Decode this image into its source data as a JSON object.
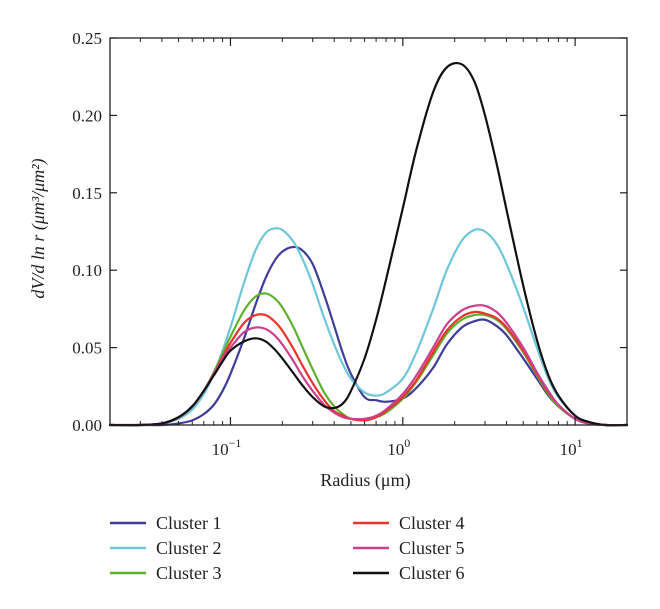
{
  "chart_data": {
    "type": "line",
    "title": "",
    "xlabel": "Radius (μm)",
    "ylabel": "dV/d ln r (μm³/μm²)",
    "xscale": "log",
    "xlim": [
      0.02,
      20
    ],
    "ylim": [
      0,
      0.25
    ],
    "xticks": [
      {
        "value": 0.1,
        "base": "10",
        "exp": "−1"
      },
      {
        "value": 1,
        "base": "10",
        "exp": "0"
      },
      {
        "value": 10,
        "base": "10",
        "exp": "1"
      }
    ],
    "yticks": [
      {
        "value": 0,
        "label": "0.00"
      },
      {
        "value": 0.05,
        "label": "0.05"
      },
      {
        "value": 0.1,
        "label": "0.10"
      },
      {
        "value": 0.15,
        "label": "0.15"
      },
      {
        "value": 0.2,
        "label": "0.20"
      },
      {
        "value": 0.25,
        "label": "0.25"
      }
    ],
    "grid": false,
    "legend_position": "bottom",
    "x": [
      0.02,
      0.03,
      0.04,
      0.05,
      0.06,
      0.07,
      0.08,
      0.09,
      0.1,
      0.12,
      0.14,
      0.16,
      0.18,
      0.2,
      0.23,
      0.26,
      0.3,
      0.35,
      0.4,
      0.45,
      0.5,
      0.6,
      0.7,
      0.8,
      1.0,
      1.2,
      1.5,
      1.8,
      2.2,
      2.6,
      3.0,
      3.5,
      4.0,
      5.0,
      6.0,
      7.0,
      8.0,
      10,
      12,
      15,
      20
    ],
    "series": [
      {
        "name": "Cluster 1",
        "color": "#3f3d99",
        "values": [
          0.0,
          0.0,
          0.0,
          0.001,
          0.003,
          0.007,
          0.013,
          0.022,
          0.033,
          0.056,
          0.078,
          0.095,
          0.106,
          0.112,
          0.115,
          0.113,
          0.104,
          0.084,
          0.064,
          0.046,
          0.033,
          0.018,
          0.016,
          0.015,
          0.017,
          0.024,
          0.037,
          0.052,
          0.063,
          0.067,
          0.068,
          0.064,
          0.058,
          0.043,
          0.03,
          0.019,
          0.012,
          0.004,
          0.001,
          0.0,
          0.0
        ]
      },
      {
        "name": "Cluster 2",
        "color": "#6ec6d8",
        "values": [
          0.0,
          0.0,
          0.001,
          0.004,
          0.01,
          0.02,
          0.033,
          0.048,
          0.063,
          0.092,
          0.113,
          0.124,
          0.127,
          0.126,
          0.119,
          0.108,
          0.091,
          0.069,
          0.052,
          0.039,
          0.03,
          0.021,
          0.019,
          0.021,
          0.03,
          0.047,
          0.075,
          0.1,
          0.119,
          0.126,
          0.125,
          0.117,
          0.104,
          0.076,
          0.05,
          0.03,
          0.018,
          0.006,
          0.002,
          0.0,
          0.0
        ]
      },
      {
        "name": "Cluster 3",
        "color": "#5fb02e",
        "values": [
          0.0,
          0.0,
          0.001,
          0.005,
          0.012,
          0.022,
          0.034,
          0.046,
          0.057,
          0.074,
          0.083,
          0.085,
          0.082,
          0.076,
          0.064,
          0.051,
          0.036,
          0.021,
          0.012,
          0.007,
          0.004,
          0.003,
          0.005,
          0.008,
          0.017,
          0.028,
          0.045,
          0.059,
          0.068,
          0.071,
          0.071,
          0.068,
          0.062,
          0.047,
          0.032,
          0.02,
          0.012,
          0.004,
          0.001,
          0.0,
          0.0
        ]
      },
      {
        "name": "Cluster 4",
        "color": "#e8342b",
        "values": [
          0.0,
          0.0,
          0.001,
          0.005,
          0.012,
          0.022,
          0.033,
          0.044,
          0.053,
          0.066,
          0.071,
          0.071,
          0.067,
          0.061,
          0.05,
          0.039,
          0.027,
          0.016,
          0.009,
          0.006,
          0.004,
          0.003,
          0.005,
          0.009,
          0.018,
          0.029,
          0.047,
          0.061,
          0.07,
          0.073,
          0.072,
          0.069,
          0.063,
          0.048,
          0.033,
          0.021,
          0.013,
          0.004,
          0.001,
          0.0,
          0.0
        ]
      },
      {
        "name": "Cluster 5",
        "color": "#cc3f8f",
        "values": [
          0.0,
          0.0,
          0.001,
          0.005,
          0.012,
          0.022,
          0.033,
          0.043,
          0.05,
          0.06,
          0.063,
          0.062,
          0.058,
          0.052,
          0.042,
          0.032,
          0.022,
          0.013,
          0.008,
          0.005,
          0.004,
          0.004,
          0.006,
          0.01,
          0.02,
          0.032,
          0.05,
          0.065,
          0.074,
          0.077,
          0.077,
          0.073,
          0.066,
          0.05,
          0.034,
          0.022,
          0.013,
          0.004,
          0.001,
          0.0,
          0.0
        ]
      },
      {
        "name": "Cluster 6",
        "color": "#111111",
        "values": [
          0.0,
          0.0,
          0.001,
          0.005,
          0.012,
          0.022,
          0.032,
          0.041,
          0.048,
          0.054,
          0.056,
          0.054,
          0.049,
          0.043,
          0.034,
          0.026,
          0.018,
          0.012,
          0.011,
          0.014,
          0.022,
          0.043,
          0.068,
          0.094,
          0.14,
          0.178,
          0.215,
          0.231,
          0.233,
          0.222,
          0.2,
          0.169,
          0.139,
          0.09,
          0.055,
          0.032,
          0.019,
          0.006,
          0.002,
          0.0,
          0.0
        ]
      }
    ]
  }
}
